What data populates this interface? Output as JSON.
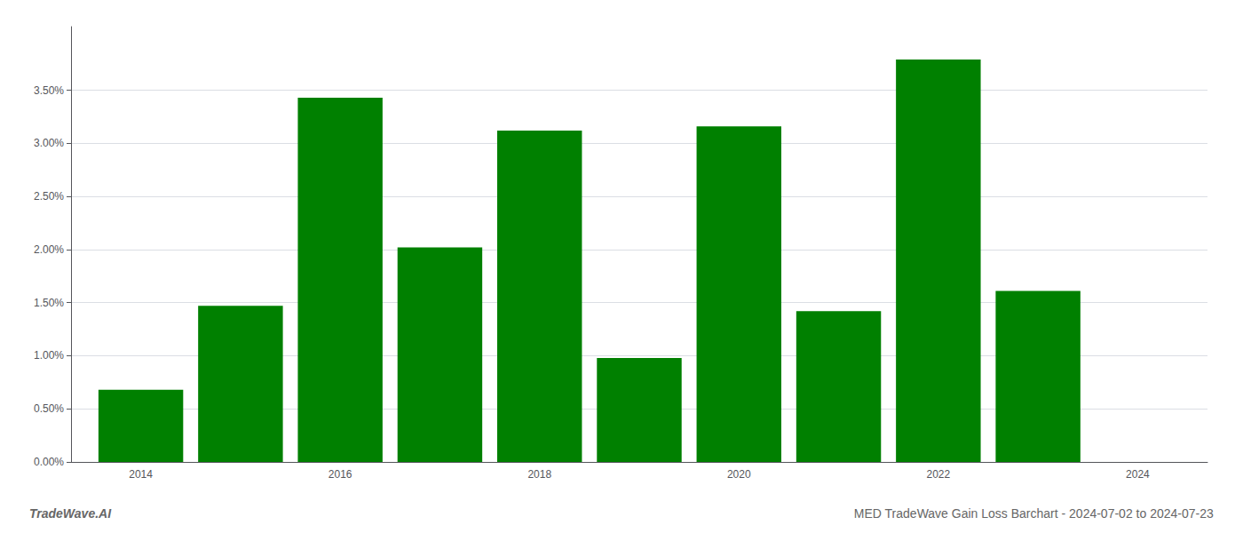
{
  "chart_data": {
    "type": "bar",
    "title": "MED TradeWave Gain Loss Barchart - 2024-07-02 to 2024-07-23",
    "annotations": [
      "TradeWave.AI"
    ],
    "x": [
      2014,
      2015,
      2016,
      2017,
      2018,
      2019,
      2020,
      2021,
      2022,
      2023
    ],
    "values": [
      0.0068,
      0.0147,
      0.0343,
      0.0202,
      0.0312,
      0.0098,
      0.0316,
      0.0142,
      0.0379,
      0.0161
    ],
    "color": "#008000",
    "xlim": [
      2013.3,
      2024.7
    ],
    "xticks": [
      2014,
      2016,
      2018,
      2020,
      2022,
      2024
    ],
    "ylim": [
      0,
      0.041
    ],
    "yticks": [
      {
        "value": 0.0,
        "label": "0.00%"
      },
      {
        "value": 0.005,
        "label": "0.50%"
      },
      {
        "value": 0.01,
        "label": "1.00%"
      },
      {
        "value": 0.015,
        "label": "1.50%"
      },
      {
        "value": 0.02,
        "label": "2.00%"
      },
      {
        "value": 0.025,
        "label": "2.50%"
      },
      {
        "value": 0.03,
        "label": "3.00%"
      },
      {
        "value": 0.035,
        "label": "3.50%"
      }
    ],
    "grid": true
  }
}
